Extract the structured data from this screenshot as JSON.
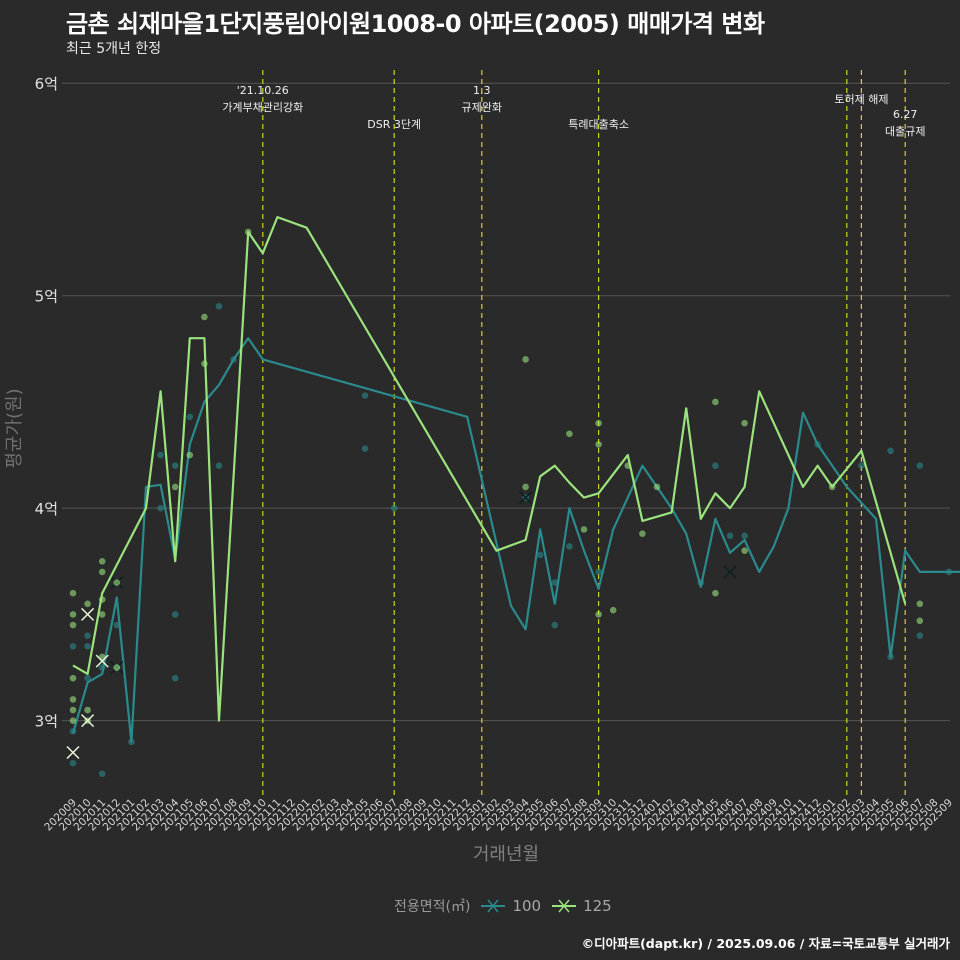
{
  "title": "금촌 쇠재마을1단지풍림아이원1008-0 아파트(2005) 매매가격 변화",
  "subtitle": "최근 5개년 한정",
  "caption": "©디아파트(dapt.kr) / 2025.09.06 / 자료=국토교통부 실거래가",
  "colors": {
    "background": "#2a2a2b",
    "grid": "#555555",
    "series_100": "#2a8a8c",
    "series_125": "#9be37c",
    "vline": "#d4d422"
  },
  "chart_data": {
    "type": "line",
    "title": "금촌 쇠재마을1단지풍림아이원1008-0 아파트(2005) 매매가격 변화",
    "xlabel": "거래년월",
    "ylabel": "평균가(원)",
    "ylim": [
      2.65,
      6.1
    ],
    "yticks": [
      3,
      4,
      5,
      6
    ],
    "ytick_labels": [
      "3억",
      "4억",
      "5억",
      "6억"
    ],
    "x_categories": [
      "202009",
      "202010",
      "202011",
      "202012",
      "202101",
      "202102",
      "202103",
      "202104",
      "202105",
      "202106",
      "202107",
      "202108",
      "202109",
      "202110",
      "202111",
      "202112",
      "202201",
      "202202",
      "202203",
      "202204",
      "202205",
      "202206",
      "202207",
      "202208",
      "202209",
      "202210",
      "202211",
      "202212",
      "202301",
      "202302",
      "202303",
      "202304",
      "202305",
      "202306",
      "202307",
      "202308",
      "202309",
      "202310",
      "202311",
      "202312",
      "202401",
      "202402",
      "202403",
      "202404",
      "202405",
      "202406",
      "202407",
      "202408",
      "202409",
      "202410",
      "202411",
      "202412",
      "202501",
      "202502",
      "202503",
      "202504",
      "202505",
      "202506",
      "202507",
      "202508",
      "202509"
    ],
    "legend_title": "전용면적(㎡)",
    "series": [
      {
        "name": "100",
        "line": [
          [
            0,
            2.94
          ],
          [
            1,
            3.18
          ],
          [
            2,
            3.22
          ],
          [
            3,
            3.58
          ],
          [
            4,
            2.9
          ],
          [
            5,
            4.1
          ],
          [
            6,
            4.11
          ],
          [
            7,
            3.76
          ],
          [
            8,
            4.3
          ],
          [
            9,
            4.5
          ],
          [
            10,
            4.58
          ],
          [
            11,
            4.7
          ],
          [
            12,
            4.8
          ],
          [
            13,
            4.7
          ],
          [
            27,
            4.43
          ],
          [
            30,
            3.54
          ],
          [
            31,
            3.43
          ],
          [
            32,
            3.9
          ],
          [
            33,
            3.55
          ],
          [
            34,
            4.0
          ],
          [
            35,
            3.8
          ],
          [
            36,
            3.62
          ],
          [
            37,
            3.9
          ],
          [
            39,
            4.2
          ],
          [
            40,
            4.1
          ],
          [
            41,
            4.0
          ],
          [
            42,
            3.88
          ],
          [
            43,
            3.63
          ],
          [
            44,
            3.95
          ],
          [
            45,
            3.79
          ],
          [
            46,
            3.85
          ],
          [
            47,
            3.7
          ],
          [
            48,
            3.82
          ],
          [
            49,
            4.0
          ],
          [
            50,
            4.45
          ],
          [
            51,
            4.3
          ],
          [
            53,
            4.1
          ],
          [
            55,
            3.95
          ],
          [
            56,
            3.3
          ],
          [
            57,
            3.8
          ],
          [
            58,
            3.7
          ],
          [
            60,
            3.7
          ],
          [
            61,
            3.7
          ]
        ],
        "points": [
          [
            0,
            2.8
          ],
          [
            0,
            2.95
          ],
          [
            0,
            3.35
          ],
          [
            1,
            3.2
          ],
          [
            1,
            3.35
          ],
          [
            1,
            3.4
          ],
          [
            2,
            2.75
          ],
          [
            2,
            3.25
          ],
          [
            3,
            3.45
          ],
          [
            3,
            3.25
          ],
          [
            4,
            2.9
          ],
          [
            6,
            4.0
          ],
          [
            6,
            4.25
          ],
          [
            7,
            3.2
          ],
          [
            7,
            3.5
          ],
          [
            7,
            4.2
          ],
          [
            8,
            4.43
          ],
          [
            10,
            4.2
          ],
          [
            10,
            4.95
          ],
          [
            11,
            4.7
          ],
          [
            20,
            4.53
          ],
          [
            20,
            4.28
          ],
          [
            22,
            4.0
          ],
          [
            31,
            4.05
          ],
          [
            32,
            3.78
          ],
          [
            33,
            3.45
          ],
          [
            33,
            3.65
          ],
          [
            34,
            3.82
          ],
          [
            36,
            3.7
          ],
          [
            43,
            3.65
          ],
          [
            44,
            4.2
          ],
          [
            45,
            3.87
          ],
          [
            46,
            3.87
          ],
          [
            51,
            4.3
          ],
          [
            54,
            4.2
          ],
          [
            56,
            4.27
          ],
          [
            56,
            3.3
          ],
          [
            58,
            3.4
          ],
          [
            58,
            4.2
          ],
          [
            60,
            3.7
          ],
          [
            61,
            3.7
          ]
        ],
        "crosses": [
          [
            3,
            3.65
          ],
          [
            3,
            3.25
          ],
          [
            31,
            4.05
          ],
          [
            45,
            3.7
          ]
        ]
      },
      {
        "name": "125",
        "line": [
          [
            0,
            3.26
          ],
          [
            1,
            3.22
          ],
          [
            2,
            3.6
          ],
          [
            5,
            4.0
          ],
          [
            6,
            4.55
          ],
          [
            7,
            3.75
          ],
          [
            8,
            4.8
          ],
          [
            9,
            4.8
          ],
          [
            10,
            3.0
          ],
          [
            12,
            5.3
          ],
          [
            13,
            5.2
          ],
          [
            14,
            5.37
          ],
          [
            16,
            5.32
          ],
          [
            29,
            3.8
          ],
          [
            31,
            3.85
          ],
          [
            32,
            4.15
          ],
          [
            33,
            4.2
          ],
          [
            34,
            4.12
          ],
          [
            35,
            4.05
          ],
          [
            36,
            4.07
          ],
          [
            38,
            4.25
          ],
          [
            39,
            3.94
          ],
          [
            41,
            3.98
          ],
          [
            42,
            4.47
          ],
          [
            43,
            3.95
          ],
          [
            44,
            4.07
          ],
          [
            45,
            4.0
          ],
          [
            46,
            4.1
          ],
          [
            47,
            4.55
          ],
          [
            50,
            4.1
          ],
          [
            51,
            4.2
          ],
          [
            52,
            4.1
          ],
          [
            54,
            4.27
          ],
          [
            57,
            3.55
          ]
        ],
        "points": [
          [
            0,
            3.6
          ],
          [
            0,
            3.5
          ],
          [
            0,
            3.45
          ],
          [
            0,
            3.2
          ],
          [
            0,
            3.1
          ],
          [
            0,
            3.05
          ],
          [
            0,
            3.0
          ],
          [
            1,
            3.55
          ],
          [
            1,
            3.05
          ],
          [
            1,
            3.0
          ],
          [
            2,
            3.75
          ],
          [
            2,
            3.7
          ],
          [
            2,
            3.57
          ],
          [
            2,
            3.5
          ],
          [
            7,
            4.1
          ],
          [
            8,
            4.25
          ],
          [
            9,
            4.9
          ],
          [
            9,
            4.68
          ],
          [
            31,
            4.7
          ],
          [
            31,
            4.1
          ],
          [
            34,
            4.35
          ],
          [
            35,
            3.9
          ],
          [
            36,
            4.4
          ],
          [
            36,
            4.3
          ],
          [
            36,
            3.5
          ],
          [
            37,
            3.52
          ],
          [
            38,
            4.2
          ],
          [
            39,
            3.88
          ],
          [
            40,
            4.1
          ],
          [
            44,
            4.5
          ],
          [
            44,
            3.6
          ],
          [
            46,
            3.8
          ],
          [
            46,
            4.4
          ],
          [
            52,
            4.1
          ],
          [
            58,
            3.47
          ],
          [
            58,
            3.55
          ],
          [
            2,
            3.3
          ],
          [
            3,
            3.25
          ],
          [
            3,
            3.65
          ],
          [
            12,
            5.3
          ]
        ],
        "crosses": [
          [
            0,
            2.85
          ],
          [
            1,
            3.5
          ],
          [
            1,
            3.0
          ],
          [
            2,
            3.28
          ]
        ]
      }
    ],
    "annotations": [
      {
        "x": 13,
        "label": "'21.10.26\n가계부채관리강화",
        "level": 1
      },
      {
        "x": 22,
        "label": "DSR 3단계",
        "level": 2
      },
      {
        "x": 28,
        "label": "1.3\n규제완화",
        "level": 1
      },
      {
        "x": 36,
        "label": "특례대출축소",
        "level": 2
      },
      {
        "x": 53,
        "label": "",
        "level": 0
      },
      {
        "x": 54,
        "label": "토허제 해제",
        "level": 0
      },
      {
        "x": 57,
        "label": "6.27\n대출규제",
        "level": 3
      }
    ]
  }
}
